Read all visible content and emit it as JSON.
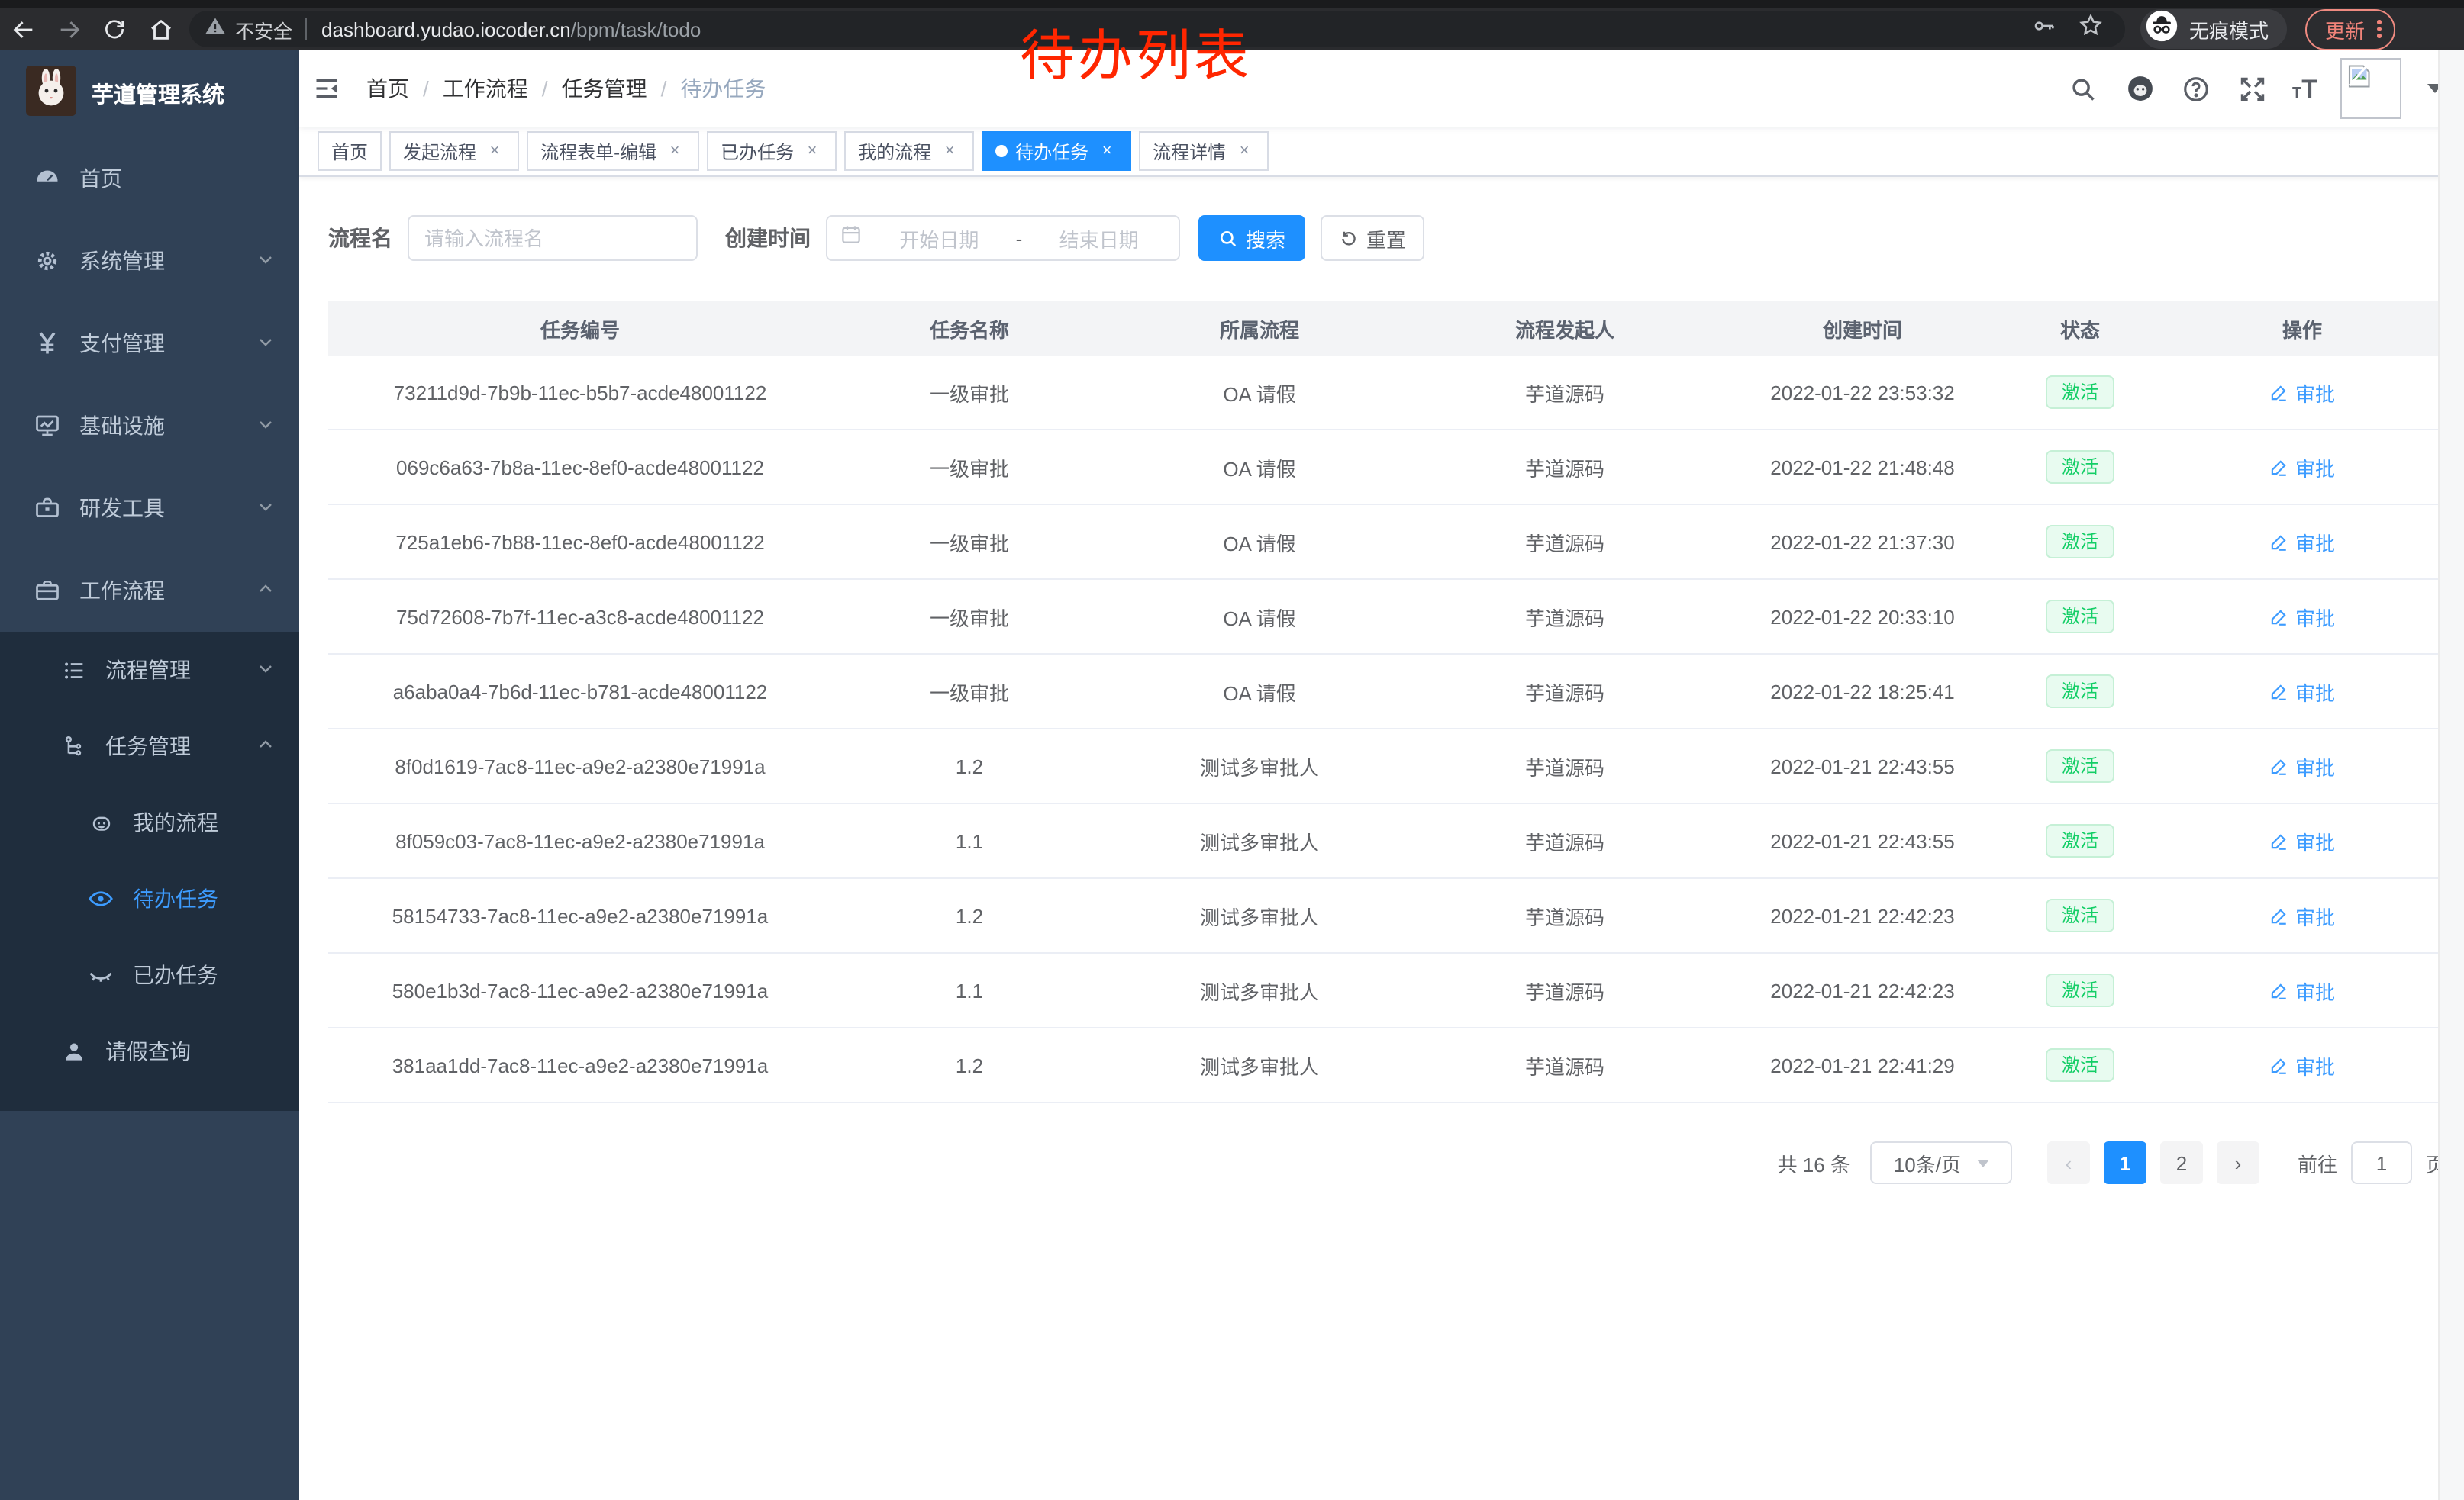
{
  "browser": {
    "security_label": "不安全",
    "url_domain": "dashboard.yudao.iocoder.cn",
    "url_path": "/bpm/task/todo",
    "incognito_label": "无痕模式",
    "update_label": "更新"
  },
  "annotation": {
    "text": "待办列表",
    "color": "#ff2600"
  },
  "sidebar": {
    "title": "芋道管理系统",
    "items": [
      {
        "label": "首页",
        "icon": "dashboard-icon"
      },
      {
        "label": "系统管理",
        "icon": "gear-icon",
        "chevron": "down"
      },
      {
        "label": "支付管理",
        "icon": "yen-icon",
        "chevron": "down"
      },
      {
        "label": "基础设施",
        "icon": "monitor-icon",
        "chevron": "down"
      },
      {
        "label": "研发工具",
        "icon": "toolbox-icon",
        "chevron": "down"
      },
      {
        "label": "工作流程",
        "icon": "briefcase-icon",
        "chevron": "up"
      }
    ],
    "submenu": [
      {
        "label": "流程管理",
        "icon": "list-tree-icon",
        "chevron": "down"
      },
      {
        "label": "任务管理",
        "icon": "org-tree-icon",
        "chevron": "up"
      },
      {
        "label": "我的流程",
        "icon": "robot-icon"
      },
      {
        "label": "待办任务",
        "icon": "eye-icon",
        "active": true
      },
      {
        "label": "已办任务",
        "icon": "eye-closed-icon"
      },
      {
        "label": "请假查询",
        "icon": "user-icon"
      }
    ]
  },
  "breadcrumb": [
    "首页",
    "工作流程",
    "任务管理",
    "待办任务"
  ],
  "tabs": [
    {
      "label": "首页",
      "closable": false,
      "active": false
    },
    {
      "label": "发起流程",
      "closable": true,
      "active": false
    },
    {
      "label": "流程表单-编辑",
      "closable": true,
      "active": false
    },
    {
      "label": "已办任务",
      "closable": true,
      "active": false
    },
    {
      "label": "我的流程",
      "closable": true,
      "active": false
    },
    {
      "label": "待办任务",
      "closable": true,
      "active": true
    },
    {
      "label": "流程详情",
      "closable": true,
      "active": false
    }
  ],
  "filters": {
    "name_label": "流程名",
    "name_placeholder": "请输入流程名",
    "time_label": "创建时间",
    "start_placeholder": "开始日期",
    "range_separator": "-",
    "end_placeholder": "结束日期",
    "search_label": "搜索",
    "reset_label": "重置"
  },
  "table": {
    "headers": [
      "任务编号",
      "任务名称",
      "所属流程",
      "流程发起人",
      "创建时间",
      "状态",
      "操作"
    ],
    "status_label": "激活",
    "action_label": "审批",
    "rows": [
      [
        "73211d9d-7b9b-11ec-b5b7-acde48001122",
        "一级审批",
        "OA 请假",
        "芋道源码",
        "2022-01-22 23:53:32"
      ],
      [
        "069c6a63-7b8a-11ec-8ef0-acde48001122",
        "一级审批",
        "OA 请假",
        "芋道源码",
        "2022-01-22 21:48:48"
      ],
      [
        "725a1eb6-7b88-11ec-8ef0-acde48001122",
        "一级审批",
        "OA 请假",
        "芋道源码",
        "2022-01-22 21:37:30"
      ],
      [
        "75d72608-7b7f-11ec-a3c8-acde48001122",
        "一级审批",
        "OA 请假",
        "芋道源码",
        "2022-01-22 20:33:10"
      ],
      [
        "a6aba0a4-7b6d-11ec-b781-acde48001122",
        "一级审批",
        "OA 请假",
        "芋道源码",
        "2022-01-22 18:25:41"
      ],
      [
        "8f0d1619-7ac8-11ec-a9e2-a2380e71991a",
        "1.2",
        "测试多审批人",
        "芋道源码",
        "2022-01-21 22:43:55"
      ],
      [
        "8f059c03-7ac8-11ec-a9e2-a2380e71991a",
        "1.1",
        "测试多审批人",
        "芋道源码",
        "2022-01-21 22:43:55"
      ],
      [
        "58154733-7ac8-11ec-a9e2-a2380e71991a",
        "1.2",
        "测试多审批人",
        "芋道源码",
        "2022-01-21 22:42:23"
      ],
      [
        "580e1b3d-7ac8-11ec-a9e2-a2380e71991a",
        "1.1",
        "测试多审批人",
        "芋道源码",
        "2022-01-21 22:42:23"
      ],
      [
        "381aa1dd-7ac8-11ec-a9e2-a2380e71991a",
        "1.2",
        "测试多审批人",
        "芋道源码",
        "2022-01-21 22:41:29"
      ]
    ]
  },
  "pagination": {
    "total_label": "共 16 条",
    "page_size": "10条/页",
    "pages": [
      "1",
      "2"
    ],
    "active_page": "1",
    "prev_icon": "‹",
    "next_icon": "›",
    "goto_label": "前往",
    "goto_value": "1",
    "page_suffix": "页"
  },
  "colors": {
    "primary": "#1e90ff",
    "sidebar_bg": "#304156",
    "submenu_bg": "#1f2d3d",
    "sidebar_text": "#bfcbd9",
    "active_link": "#3d9cff",
    "success_text": "#13ce66",
    "success_bg": "#e8fbf0",
    "annotation_red": "#ff2600"
  }
}
